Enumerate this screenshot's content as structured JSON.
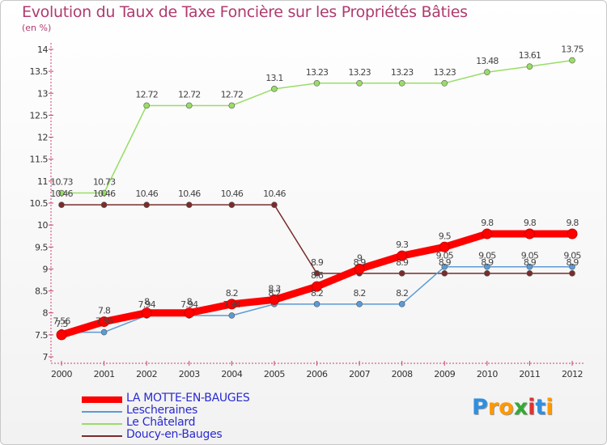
{
  "chart_data": {
    "type": "line",
    "title": "Evolution du Taux de Taxe Foncière sur les Propriétés Bâties",
    "ylabel": "(en %)",
    "xlabel": "",
    "ylim": [
      7,
      14
    ],
    "yticks": [
      "7",
      "7.5",
      "8",
      "8.5",
      "9",
      "9.5",
      "10",
      "10.5",
      "11",
      "11.5",
      "12",
      "12.5",
      "13",
      "13.5",
      "14"
    ],
    "x": [
      "2000",
      "2001",
      "2002",
      "2003",
      "2004",
      "2005",
      "2006",
      "2007",
      "2008",
      "2009",
      "2010",
      "2011",
      "2012"
    ],
    "series": [
      {
        "name": "LA MOTTE-EN-BAUGES",
        "color": "#ff0000",
        "values": [
          7.5,
          7.8,
          8,
          8,
          8.2,
          8.3,
          8.6,
          9,
          9.3,
          9.5,
          9.8,
          9.8,
          9.8
        ],
        "labels": [
          "7.5",
          "7.8",
          "8",
          "8",
          "8.2",
          "8.3",
          "8.6",
          "9",
          "9.3",
          "9.5",
          "9.8",
          "9.8",
          "9.8"
        ]
      },
      {
        "name": "Lescheraines",
        "color": "#5b9bd5",
        "values": [
          7.56,
          7.56,
          7.94,
          7.94,
          7.94,
          8.2,
          8.2,
          8.2,
          8.2,
          9.05,
          9.05,
          9.05,
          9.05
        ],
        "labels": [
          "7.56",
          "7.56",
          "7.94",
          "7.94",
          "7.94",
          "8.2",
          "8.2",
          "8.2",
          "8.2",
          "9.05",
          "9.05",
          "9.05",
          "9.05"
        ]
      },
      {
        "name": "Le Châtelard",
        "color": "#99dd66",
        "values": [
          10.73,
          10.73,
          12.72,
          12.72,
          12.72,
          13.1,
          13.23,
          13.23,
          13.23,
          13.23,
          13.48,
          13.61,
          13.75
        ],
        "labels": [
          "10.73",
          "10.73",
          "12.72",
          "12.72",
          "12.72",
          "13.1",
          "13.23",
          "13.23",
          "13.23",
          "13.23",
          "13.48",
          "13.61",
          "13.75"
        ]
      },
      {
        "name": "Doucy-en-Bauges",
        "color": "#7a2c2c",
        "values": [
          10.46,
          10.46,
          10.46,
          10.46,
          10.46,
          10.46,
          8.9,
          8.9,
          8.9,
          8.9,
          8.9,
          8.9,
          8.9
        ],
        "labels": [
          "10.46",
          "10.46",
          "10.46",
          "10.46",
          "10.46",
          "10.46",
          "8.9",
          "8.9",
          "8.9",
          "8.9",
          "8.9",
          "8.9",
          "8.9"
        ]
      }
    ]
  },
  "logo": {
    "letters": [
      "P",
      "r",
      "o",
      "x",
      "i",
      "t",
      "i"
    ],
    "colors": [
      "#2f8fe0",
      "#ff9900",
      "#ff9900",
      "#33aa33",
      "#dd3333",
      "#2f8fe0",
      "#ff9900"
    ]
  }
}
